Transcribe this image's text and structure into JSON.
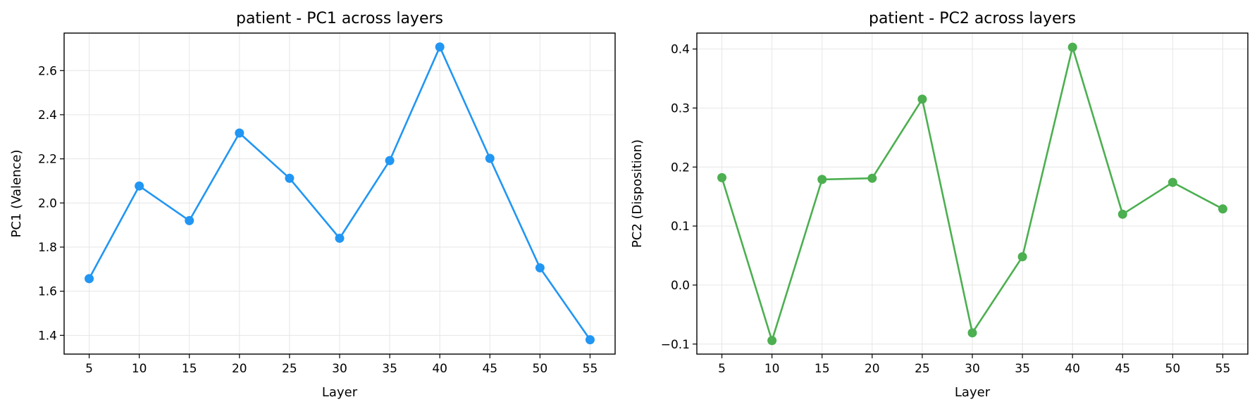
{
  "chart_data": [
    {
      "type": "line",
      "title": "patient - PC1 across layers",
      "xlabel": "Layer",
      "ylabel": "PC1 (Valence)",
      "x": [
        5,
        10,
        15,
        20,
        25,
        30,
        35,
        40,
        45,
        50,
        55
      ],
      "xticks": [
        "5",
        "10",
        "15",
        "20",
        "25",
        "30",
        "35",
        "40",
        "45",
        "50",
        "55"
      ],
      "yticks": [
        "1.4",
        "1.6",
        "1.8",
        "2.0",
        "2.2",
        "2.4",
        "2.6"
      ],
      "ytick_values": [
        1.4,
        1.6,
        1.8,
        2.0,
        2.2,
        2.4,
        2.6
      ],
      "xlim": [
        2.5,
        57.5
      ],
      "ylim": [
        1.315,
        2.77
      ],
      "grid": true,
      "color": "#2196F3",
      "series": [
        {
          "values": [
            1.657,
            2.077,
            1.92,
            2.317,
            2.112,
            1.84,
            2.192,
            2.707,
            2.202,
            1.706,
            1.38
          ]
        }
      ]
    },
    {
      "type": "line",
      "title": "patient - PC2 across layers",
      "xlabel": "Layer",
      "ylabel": "PC2 (Disposition)",
      "x": [
        5,
        10,
        15,
        20,
        25,
        30,
        35,
        40,
        45,
        50,
        55
      ],
      "xticks": [
        "5",
        "10",
        "15",
        "20",
        "25",
        "30",
        "35",
        "40",
        "45",
        "50",
        "55"
      ],
      "yticks": [
        "−0.1",
        "0.0",
        "0.1",
        "0.2",
        "0.3",
        "0.4"
      ],
      "ytick_values": [
        -0.1,
        0.0,
        0.1,
        0.2,
        0.3,
        0.4
      ],
      "xlim": [
        2.5,
        57.5
      ],
      "ylim": [
        -0.117,
        0.427
      ],
      "grid": true,
      "color": "#4CAF50",
      "series": [
        {
          "values": [
            0.182,
            -0.094,
            0.179,
            0.181,
            0.315,
            -0.081,
            0.048,
            0.403,
            0.12,
            0.174,
            0.129
          ]
        }
      ]
    }
  ]
}
